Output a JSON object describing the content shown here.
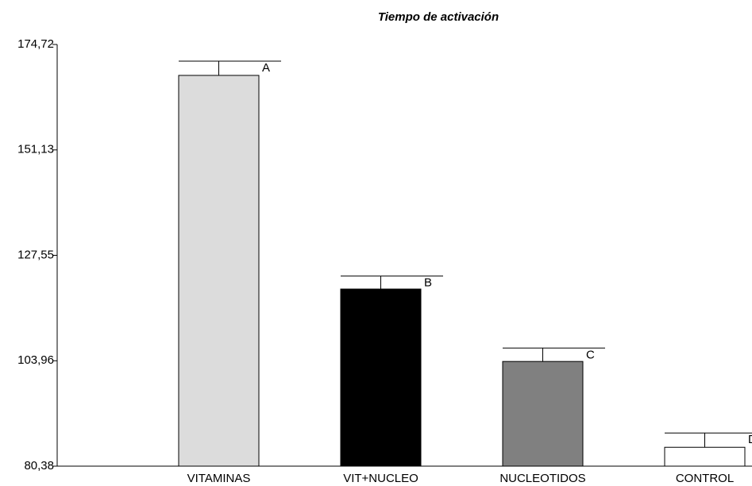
{
  "chart_data": {
    "type": "bar",
    "title": "Tiempo de activación",
    "categories": [
      "VITAMINAS",
      "VIT+NUCLEO",
      "NUCLEOTIDOS",
      "CONTROL"
    ],
    "values": [
      167.8,
      120.0,
      103.8,
      84.6
    ],
    "errors": [
      3.2,
      2.9,
      3.0,
      3.2
    ],
    "letters": [
      "A",
      "B",
      "C",
      "D"
    ],
    "colors": [
      "#dcdcdc",
      "#000000",
      "#808080",
      "#ffffff"
    ],
    "ylim": [
      80.38,
      174.72
    ],
    "yticks": [
      {
        "value": 80.38,
        "label": "80,38"
      },
      {
        "value": 103.96,
        "label": "103,96"
      },
      {
        "value": 127.55,
        "label": "127,55"
      },
      {
        "value": 151.13,
        "label": "151,13"
      },
      {
        "value": 174.72,
        "label": "174,72"
      }
    ]
  }
}
